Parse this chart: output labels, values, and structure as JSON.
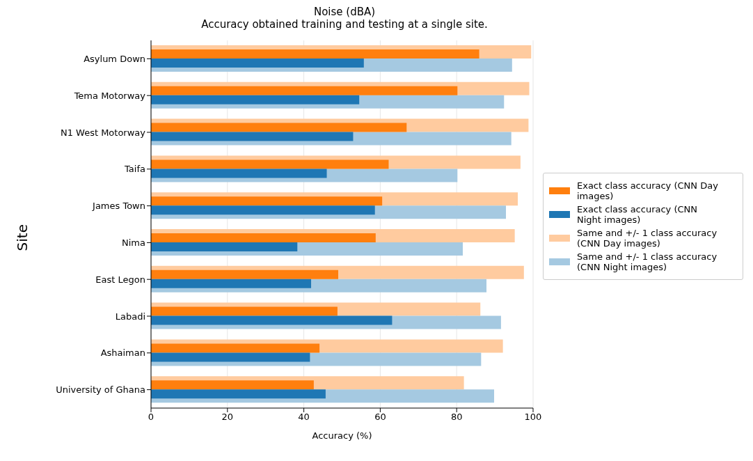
{
  "chart_data": {
    "type": "bar",
    "orientation": "horizontal",
    "title": "Noise (dBA)",
    "subtitle": "Accuracy obtained training and testing at a single site.",
    "xlabel": "Accuracy (%)",
    "ylabel": "Site",
    "categories": [
      "Asylum Down",
      "Tema Motorway",
      "N1 West Motorway",
      "Taifa",
      "James Town",
      "Nima",
      "East Legon",
      "Labadi",
      "Ashaiman",
      "University of Ghana"
    ],
    "series": [
      {
        "name": "Exact class accuracy (CNN Day images)",
        "color": "#ff7f0e",
        "values": [
          85.9,
          80.2,
          66.9,
          62.2,
          60.5,
          58.8,
          49.0,
          48.8,
          44.1,
          42.6
        ]
      },
      {
        "name": "Exact class accuracy (CNN Night images)",
        "color": "#1f77b4",
        "values": [
          55.7,
          54.5,
          52.9,
          46.0,
          58.6,
          38.3,
          41.9,
          63.1,
          41.6,
          45.7
        ]
      },
      {
        "name": "Same and +/- 1 class accuracy (CNN Day images)",
        "color": "#ffcb9f",
        "values": [
          99.5,
          99.0,
          98.8,
          96.7,
          96.0,
          95.2,
          97.6,
          86.2,
          92.1,
          81.9
        ]
      },
      {
        "name": "Same and +/- 1 class accuracy (CNN Night images)",
        "color": "#a5c9e1",
        "values": [
          94.5,
          92.4,
          94.3,
          80.2,
          92.9,
          81.6,
          87.8,
          91.6,
          86.4,
          89.8
        ]
      }
    ],
    "xlim": [
      0,
      100
    ],
    "xticks": [
      0,
      20,
      40,
      60,
      80,
      100
    ],
    "grid": "x",
    "legend": "right"
  }
}
